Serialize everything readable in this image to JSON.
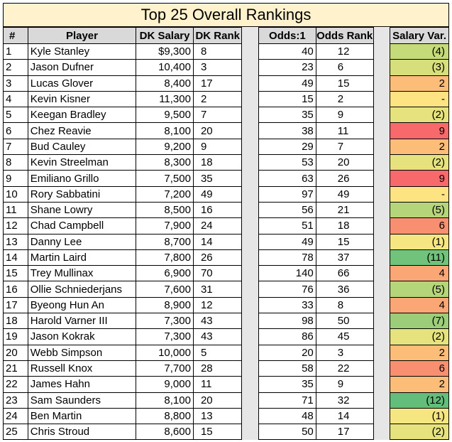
{
  "title": "Top 25 Overall Rankings",
  "headers": {
    "rank": "#",
    "player": "Player",
    "salary": "DK Salary",
    "dk_rank": "DK Rank",
    "odds": "Odds:1",
    "odds_rank": "Odds Rank",
    "salary_var": "Salary Var."
  },
  "colors": {
    "title_bg": "#fff2cc",
    "header_bg": "#d9d9d9",
    "gap_bg": "#e7e6e6"
  },
  "rows": [
    {
      "rank": "1",
      "player": "Kyle Stanley",
      "salary": "$9,300",
      "dk_rank": "8",
      "odds": "40",
      "odds_rank": "12",
      "var": "(4)",
      "var_color": "#c5da78"
    },
    {
      "rank": "2",
      "player": "Jason Dufner",
      "salary": "10,400",
      "dk_rank": "3",
      "odds": "23",
      "odds_rank": "6",
      "var": "(3)",
      "var_color": "#d6df7c"
    },
    {
      "rank": "3",
      "player": "Lucas Glover",
      "salary": "8,400",
      "dk_rank": "17",
      "odds": "49",
      "odds_rank": "15",
      "var": "2",
      "var_color": "#fbbd78"
    },
    {
      "rank": "4",
      "player": "Kevin Kisner",
      "salary": "11,300",
      "dk_rank": "2",
      "odds": "15",
      "odds_rank": "2",
      "var": "-",
      "var_color": "#fee382"
    },
    {
      "rank": "5",
      "player": "Keegan Bradley",
      "salary": "9,500",
      "dk_rank": "7",
      "odds": "35",
      "odds_rank": "9",
      "var": "(2)",
      "var_color": "#e6e37f"
    },
    {
      "rank": "6",
      "player": "Chez Reavie",
      "salary": "8,100",
      "dk_rank": "20",
      "odds": "38",
      "odds_rank": "11",
      "var": "9",
      "var_color": "#f8696b"
    },
    {
      "rank": "7",
      "player": "Bud Cauley",
      "salary": "9,200",
      "dk_rank": "9",
      "odds": "29",
      "odds_rank": "7",
      "var": "2",
      "var_color": "#fbbd78"
    },
    {
      "rank": "8",
      "player": "Kevin Streelman",
      "salary": "8,300",
      "dk_rank": "18",
      "odds": "53",
      "odds_rank": "20",
      "var": "(2)",
      "var_color": "#e6e37f"
    },
    {
      "rank": "9",
      "player": "Emiliano Grillo",
      "salary": "7,500",
      "dk_rank": "35",
      "odds": "63",
      "odds_rank": "26",
      "var": "9",
      "var_color": "#f8696b"
    },
    {
      "rank": "10",
      "player": "Rory Sabbatini",
      "salary": "7,200",
      "dk_rank": "49",
      "odds": "97",
      "odds_rank": "49",
      "var": "-",
      "var_color": "#fee382"
    },
    {
      "rank": "11",
      "player": "Shane Lowry",
      "salary": "8,500",
      "dk_rank": "16",
      "odds": "56",
      "odds_rank": "21",
      "var": "(5)",
      "var_color": "#b5d57a"
    },
    {
      "rank": "12",
      "player": "Chad Campbell",
      "salary": "7,900",
      "dk_rank": "24",
      "odds": "51",
      "odds_rank": "18",
      "var": "6",
      "var_color": "#f98f71"
    },
    {
      "rank": "13",
      "player": "Danny Lee",
      "salary": "8,700",
      "dk_rank": "14",
      "odds": "49",
      "odds_rank": "15",
      "var": "(1)",
      "var_color": "#f5e681"
    },
    {
      "rank": "14",
      "player": "Martin Laird",
      "salary": "7,800",
      "dk_rank": "26",
      "odds": "78",
      "odds_rank": "37",
      "var": "(11)",
      "var_color": "#71c27a"
    },
    {
      "rank": "15",
      "player": "Trey Mullinax",
      "salary": "6,900",
      "dk_rank": "70",
      "odds": "140",
      "odds_rank": "66",
      "var": "4",
      "var_color": "#fba775"
    },
    {
      "rank": "16",
      "player": "Ollie Schniederjans",
      "salary": "7,600",
      "dk_rank": "31",
      "odds": "76",
      "odds_rank": "36",
      "var": "(5)",
      "var_color": "#b5d57a"
    },
    {
      "rank": "17",
      "player": "Byeong Hun An",
      "salary": "8,900",
      "dk_rank": "12",
      "odds": "33",
      "odds_rank": "8",
      "var": "4",
      "var_color": "#fba775"
    },
    {
      "rank": "18",
      "player": "Harold Varner III",
      "salary": "7,300",
      "dk_rank": "43",
      "odds": "98",
      "odds_rank": "50",
      "var": "(7)",
      "var_color": "#9ccd79"
    },
    {
      "rank": "19",
      "player": "Jason Kokrak",
      "salary": "7,300",
      "dk_rank": "43",
      "odds": "86",
      "odds_rank": "45",
      "var": "(2)",
      "var_color": "#e6e37f"
    },
    {
      "rank": "20",
      "player": "Webb Simpson",
      "salary": "10,000",
      "dk_rank": "5",
      "odds": "20",
      "odds_rank": "3",
      "var": "2",
      "var_color": "#fbbd78"
    },
    {
      "rank": "21",
      "player": "Russell Knox",
      "salary": "7,700",
      "dk_rank": "28",
      "odds": "58",
      "odds_rank": "22",
      "var": "6",
      "var_color": "#f98f71"
    },
    {
      "rank": "22",
      "player": "James Hahn",
      "salary": "9,000",
      "dk_rank": "11",
      "odds": "35",
      "odds_rank": "9",
      "var": "2",
      "var_color": "#fbbd78"
    },
    {
      "rank": "23",
      "player": "Sam Saunders",
      "salary": "8,100",
      "dk_rank": "20",
      "odds": "71",
      "odds_rank": "32",
      "var": "(12)",
      "var_color": "#63be7b"
    },
    {
      "rank": "24",
      "player": "Ben Martin",
      "salary": "8,800",
      "dk_rank": "13",
      "odds": "48",
      "odds_rank": "14",
      "var": "(1)",
      "var_color": "#f5e681"
    },
    {
      "rank": "25",
      "player": "Chris Stroud",
      "salary": "8,600",
      "dk_rank": "15",
      "odds": "50",
      "odds_rank": "17",
      "var": "(2)",
      "var_color": "#e6e37f"
    }
  ]
}
